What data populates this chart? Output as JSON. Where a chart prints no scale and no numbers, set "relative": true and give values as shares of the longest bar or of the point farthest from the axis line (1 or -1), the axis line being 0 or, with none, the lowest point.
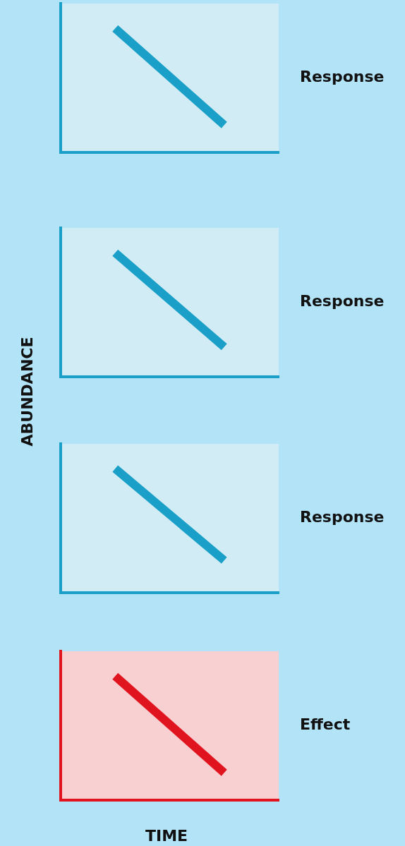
{
  "chart_data": [
    {
      "type": "line",
      "relative": true,
      "categories": [
        null,
        null
      ],
      "series": [
        {
          "color": "#1aa0c8",
          "values": [
            1,
            0.22
          ]
        }
      ],
      "annotations": [
        "Response"
      ]
    },
    {
      "type": "line",
      "relative": true,
      "ylabel": "ABUNDANCE",
      "categories": [
        null,
        null
      ],
      "series": [
        {
          "color": "#1aa0c8",
          "values": [
            1,
            0.24
          ]
        }
      ],
      "annotations": [
        "Response"
      ]
    },
    {
      "type": "line",
      "relative": true,
      "categories": [
        null,
        null
      ],
      "series": [
        {
          "color": "#1aa0c8",
          "values": [
            1,
            0.26
          ]
        }
      ],
      "annotations": [
        "Response"
      ]
    },
    {
      "type": "line",
      "relative": true,
      "xlabel": "TIME",
      "categories": [
        null,
        null
      ],
      "series": [
        {
          "color": "#e0141e",
          "values": [
            1,
            0.22
          ]
        }
      ],
      "annotations": [
        "Effect"
      ]
    }
  ]
}
